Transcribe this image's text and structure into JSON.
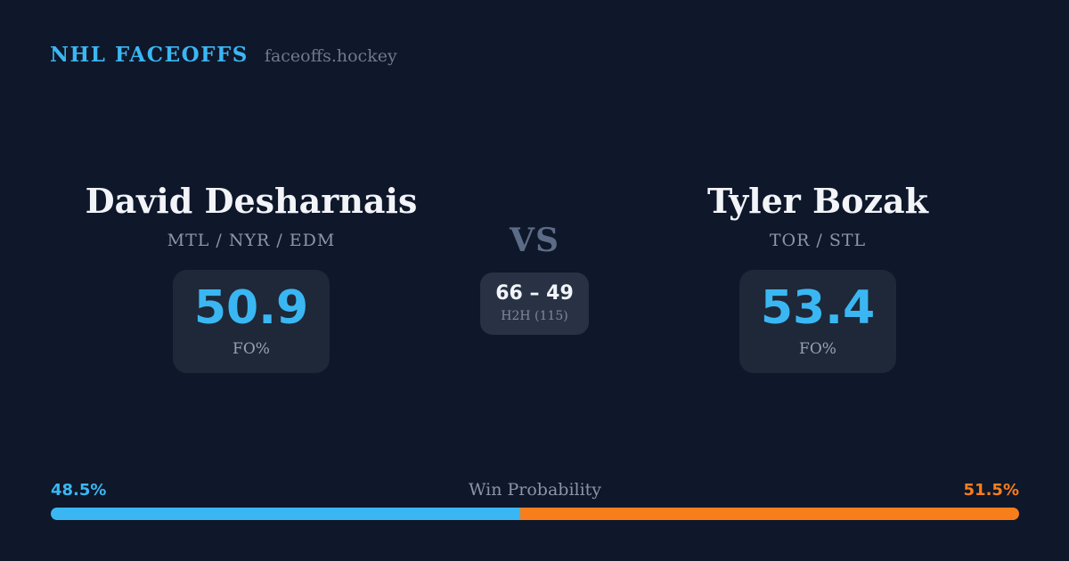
{
  "theme": {
    "background": "#0f172a",
    "panel": "#1e2838",
    "panel_light": "#283244",
    "accent_blue": "#3ab7f3",
    "accent_orange": "#f87d1b",
    "text_primary": "#f2f4f8",
    "text_muted": "#8c97ab"
  },
  "header": {
    "brand": "NHL FACEOFFS",
    "site": "faceoffs.hockey"
  },
  "matchup": {
    "player1": {
      "name": "David Desharnais",
      "teams": "MTL / NYR / EDM",
      "fo_value": "50.9",
      "fo_label": "FO%"
    },
    "vs_label": "VS",
    "h2h": {
      "score": "66 – 49",
      "label": "H2H (115)"
    },
    "player2": {
      "name": "Tyler Bozak",
      "teams": "TOR / STL",
      "fo_value": "53.4",
      "fo_label": "FO%"
    }
  },
  "win_probability": {
    "label": "Win Probability",
    "left_label": "48.5%",
    "right_label": "51.5%",
    "left_value": 48.5,
    "right_value": 51.5
  },
  "chart_data": {
    "type": "bar",
    "title": "Win Probability",
    "categories": [
      "David Desharnais",
      "Tyler Bozak"
    ],
    "values": [
      48.5,
      51.5
    ],
    "colors": [
      "#3ab7f3",
      "#f87d1b"
    ],
    "xlabel": "",
    "ylabel": "",
    "ylim": [
      0,
      100
    ]
  }
}
